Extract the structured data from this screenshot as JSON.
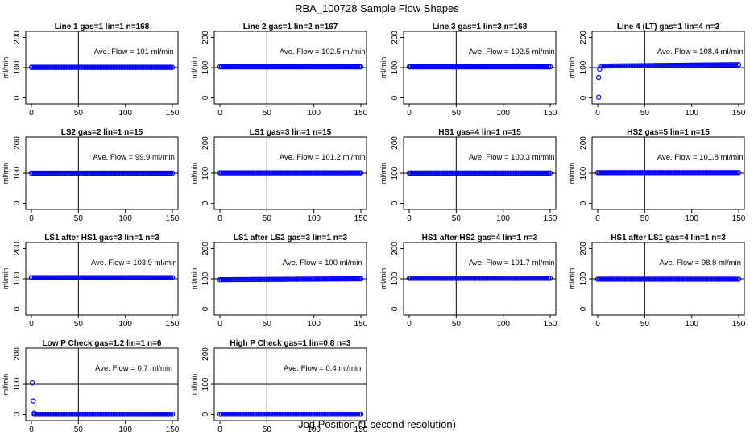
{
  "figure": {
    "title": "RBA_100728  Sample Flow Shapes",
    "xlabel": "Jog Position (1 second resolution)"
  },
  "chart_data": [
    {
      "type": "scatter",
      "title": "Line 1 gas=1 lin=1 n=168",
      "ylabel": "ml/min",
      "xlim": [
        0,
        150
      ],
      "ylim": [
        -20,
        220
      ],
      "x_ticks": [
        0,
        50,
        100,
        150
      ],
      "y_ticks": [
        0,
        100,
        200
      ],
      "vline": 50,
      "hline": 100,
      "annotation": "Ave. Flow =  101  ml/min",
      "points": [
        [
          0,
          101
        ],
        [
          150,
          101
        ]
      ],
      "outliers": [],
      "color": "#0000ff"
    },
    {
      "type": "scatter",
      "title": "Line 2 gas=1 lin=2 n=167",
      "ylabel": "ml/min",
      "xlim": [
        0,
        150
      ],
      "ylim": [
        -20,
        220
      ],
      "x_ticks": [
        0,
        50,
        100,
        150
      ],
      "y_ticks": [
        0,
        100,
        200
      ],
      "vline": 50,
      "hline": 100,
      "annotation": "Ave. Flow =  102.5  ml/min",
      "points": [
        [
          0,
          102.5
        ],
        [
          150,
          102.5
        ]
      ],
      "outliers": [],
      "color": "#0000ff"
    },
    {
      "type": "scatter",
      "title": "Line 3 gas=1 lin=3 n=168",
      "ylabel": "ml/min",
      "xlim": [
        0,
        150
      ],
      "ylim": [
        -20,
        220
      ],
      "x_ticks": [
        0,
        50,
        100,
        150
      ],
      "y_ticks": [
        0,
        100,
        200
      ],
      "vline": 50,
      "hline": 100,
      "annotation": "Ave. Flow =  102.5  ml/min",
      "points": [
        [
          0,
          102.5
        ],
        [
          150,
          102.5
        ]
      ],
      "outliers": [],
      "color": "#0000ff"
    },
    {
      "type": "scatter",
      "title": "Line 4 (LT) gas=1 lin=4 n=3",
      "ylabel": "ml/min",
      "xlim": [
        0,
        150
      ],
      "ylim": [
        -20,
        220
      ],
      "x_ticks": [
        0,
        50,
        100,
        150
      ],
      "y_ticks": [
        0,
        100,
        200
      ],
      "vline": 50,
      "hline": 100,
      "annotation": "Ave. Flow =  108.4  ml/min",
      "points": [
        [
          3,
          105
        ],
        [
          150,
          110
        ]
      ],
      "outliers": [
        [
          1,
          2
        ],
        [
          1,
          68
        ],
        [
          2,
          95
        ]
      ],
      "color": "#0000ff"
    },
    {
      "type": "scatter",
      "title": "LS2 gas=2 lin=1 n=15",
      "ylabel": "ml/min",
      "xlim": [
        0,
        150
      ],
      "ylim": [
        -20,
        220
      ],
      "x_ticks": [
        0,
        50,
        100,
        150
      ],
      "y_ticks": [
        0,
        100,
        200
      ],
      "vline": 50,
      "hline": 100,
      "annotation": "Ave. Flow =  99.9  ml/min",
      "points": [
        [
          0,
          100
        ],
        [
          150,
          100
        ]
      ],
      "outliers": [],
      "color": "#0000ff"
    },
    {
      "type": "scatter",
      "title": "LS1 gas=3 lin=1 n=15",
      "ylabel": "ml/min",
      "xlim": [
        0,
        150
      ],
      "ylim": [
        -20,
        220
      ],
      "x_ticks": [
        0,
        50,
        100,
        150
      ],
      "y_ticks": [
        0,
        100,
        200
      ],
      "vline": 50,
      "hline": 100,
      "annotation": "Ave. Flow =  101.2  ml/min",
      "points": [
        [
          0,
          101.2
        ],
        [
          150,
          101.2
        ]
      ],
      "outliers": [],
      "color": "#0000ff"
    },
    {
      "type": "scatter",
      "title": "HS1 gas=4 lin=1 n=15",
      "ylabel": "ml/min",
      "xlim": [
        0,
        150
      ],
      "ylim": [
        -20,
        220
      ],
      "x_ticks": [
        0,
        50,
        100,
        150
      ],
      "y_ticks": [
        0,
        100,
        200
      ],
      "vline": 50,
      "hline": 100,
      "annotation": "Ave. Flow =  100.3  ml/min",
      "points": [
        [
          0,
          100.3
        ],
        [
          150,
          100.3
        ]
      ],
      "outliers": [],
      "color": "#0000ff"
    },
    {
      "type": "scatter",
      "title": "HS2 gas=5 lin=1 n=15",
      "ylabel": "ml/min",
      "xlim": [
        0,
        150
      ],
      "ylim": [
        -20,
        220
      ],
      "x_ticks": [
        0,
        50,
        100,
        150
      ],
      "y_ticks": [
        0,
        100,
        200
      ],
      "vline": 50,
      "hline": 100,
      "annotation": "Ave. Flow =  101.8  ml/min",
      "points": [
        [
          0,
          101.8
        ],
        [
          150,
          101.8
        ]
      ],
      "outliers": [],
      "color": "#0000ff"
    },
    {
      "type": "scatter",
      "title": "LS1 after HS1 gas=3 lin=1 n=3",
      "ylabel": "ml/min",
      "xlim": [
        0,
        150
      ],
      "ylim": [
        -20,
        220
      ],
      "x_ticks": [
        0,
        50,
        100,
        150
      ],
      "y_ticks": [
        0,
        100,
        200
      ],
      "vline": 50,
      "hline": 100,
      "annotation": "Ave. Flow =  103.9  ml/min",
      "points": [
        [
          0,
          103.9
        ],
        [
          150,
          103.9
        ]
      ],
      "outliers": [],
      "color": "#0000ff"
    },
    {
      "type": "scatter",
      "title": "LS1 after LS2 gas=3 lin=1 n=3",
      "ylabel": "ml/min",
      "xlim": [
        0,
        150
      ],
      "ylim": [
        -20,
        220
      ],
      "x_ticks": [
        0,
        50,
        100,
        150
      ],
      "y_ticks": [
        0,
        100,
        200
      ],
      "vline": 50,
      "hline": 100,
      "annotation": "Ave. Flow =  100  ml/min",
      "points": [
        [
          0,
          97
        ],
        [
          150,
          100
        ]
      ],
      "outliers": [],
      "color": "#0000ff"
    },
    {
      "type": "scatter",
      "title": "HS1 after HS2 gas=4 lin=1 n=3",
      "ylabel": "ml/min",
      "xlim": [
        0,
        150
      ],
      "ylim": [
        -20,
        220
      ],
      "x_ticks": [
        0,
        50,
        100,
        150
      ],
      "y_ticks": [
        0,
        100,
        200
      ],
      "vline": 50,
      "hline": 100,
      "annotation": "Ave. Flow =  101.7  ml/min",
      "points": [
        [
          0,
          101.7
        ],
        [
          150,
          101.7
        ]
      ],
      "outliers": [],
      "color": "#0000ff"
    },
    {
      "type": "scatter",
      "title": "HS1 after LS1 gas=4 lin=1 n=3",
      "ylabel": "ml/min",
      "xlim": [
        0,
        150
      ],
      "ylim": [
        -20,
        220
      ],
      "x_ticks": [
        0,
        50,
        100,
        150
      ],
      "y_ticks": [
        0,
        100,
        200
      ],
      "vline": 50,
      "hline": 100,
      "annotation": "Ave. Flow =  98.8  ml/min",
      "points": [
        [
          0,
          98.8
        ],
        [
          150,
          98.8
        ]
      ],
      "outliers": [],
      "color": "#0000ff"
    },
    {
      "type": "scatter",
      "title": "Low P Check gas=1.2 lin=1 n=6",
      "ylabel": "ml/min",
      "xlim": [
        0,
        150
      ],
      "ylim": [
        -20,
        220
      ],
      "x_ticks": [
        0,
        50,
        100,
        150
      ],
      "y_ticks": [
        0,
        100,
        200
      ],
      "vline": 50,
      "hline": 100,
      "annotation": "Ave. Flow =  0.7  ml/min",
      "points": [
        [
          3,
          0.3
        ],
        [
          150,
          0.3
        ]
      ],
      "outliers": [
        [
          1,
          105
        ],
        [
          2,
          45
        ],
        [
          3,
          5
        ]
      ],
      "color": "#0000ff"
    },
    {
      "type": "scatter",
      "title": "High P Check gas=1 lin=0.8 n=3",
      "ylabel": "ml/min",
      "xlim": [
        0,
        150
      ],
      "ylim": [
        -20,
        220
      ],
      "x_ticks": [
        0,
        50,
        100,
        150
      ],
      "y_ticks": [
        0,
        100,
        200
      ],
      "vline": 50,
      "hline": 100,
      "annotation": "Ave. Flow =  0.4  ml/min",
      "points": [
        [
          0,
          0.4
        ],
        [
          150,
          0.4
        ]
      ],
      "outliers": [],
      "color": "#0000ff"
    }
  ]
}
